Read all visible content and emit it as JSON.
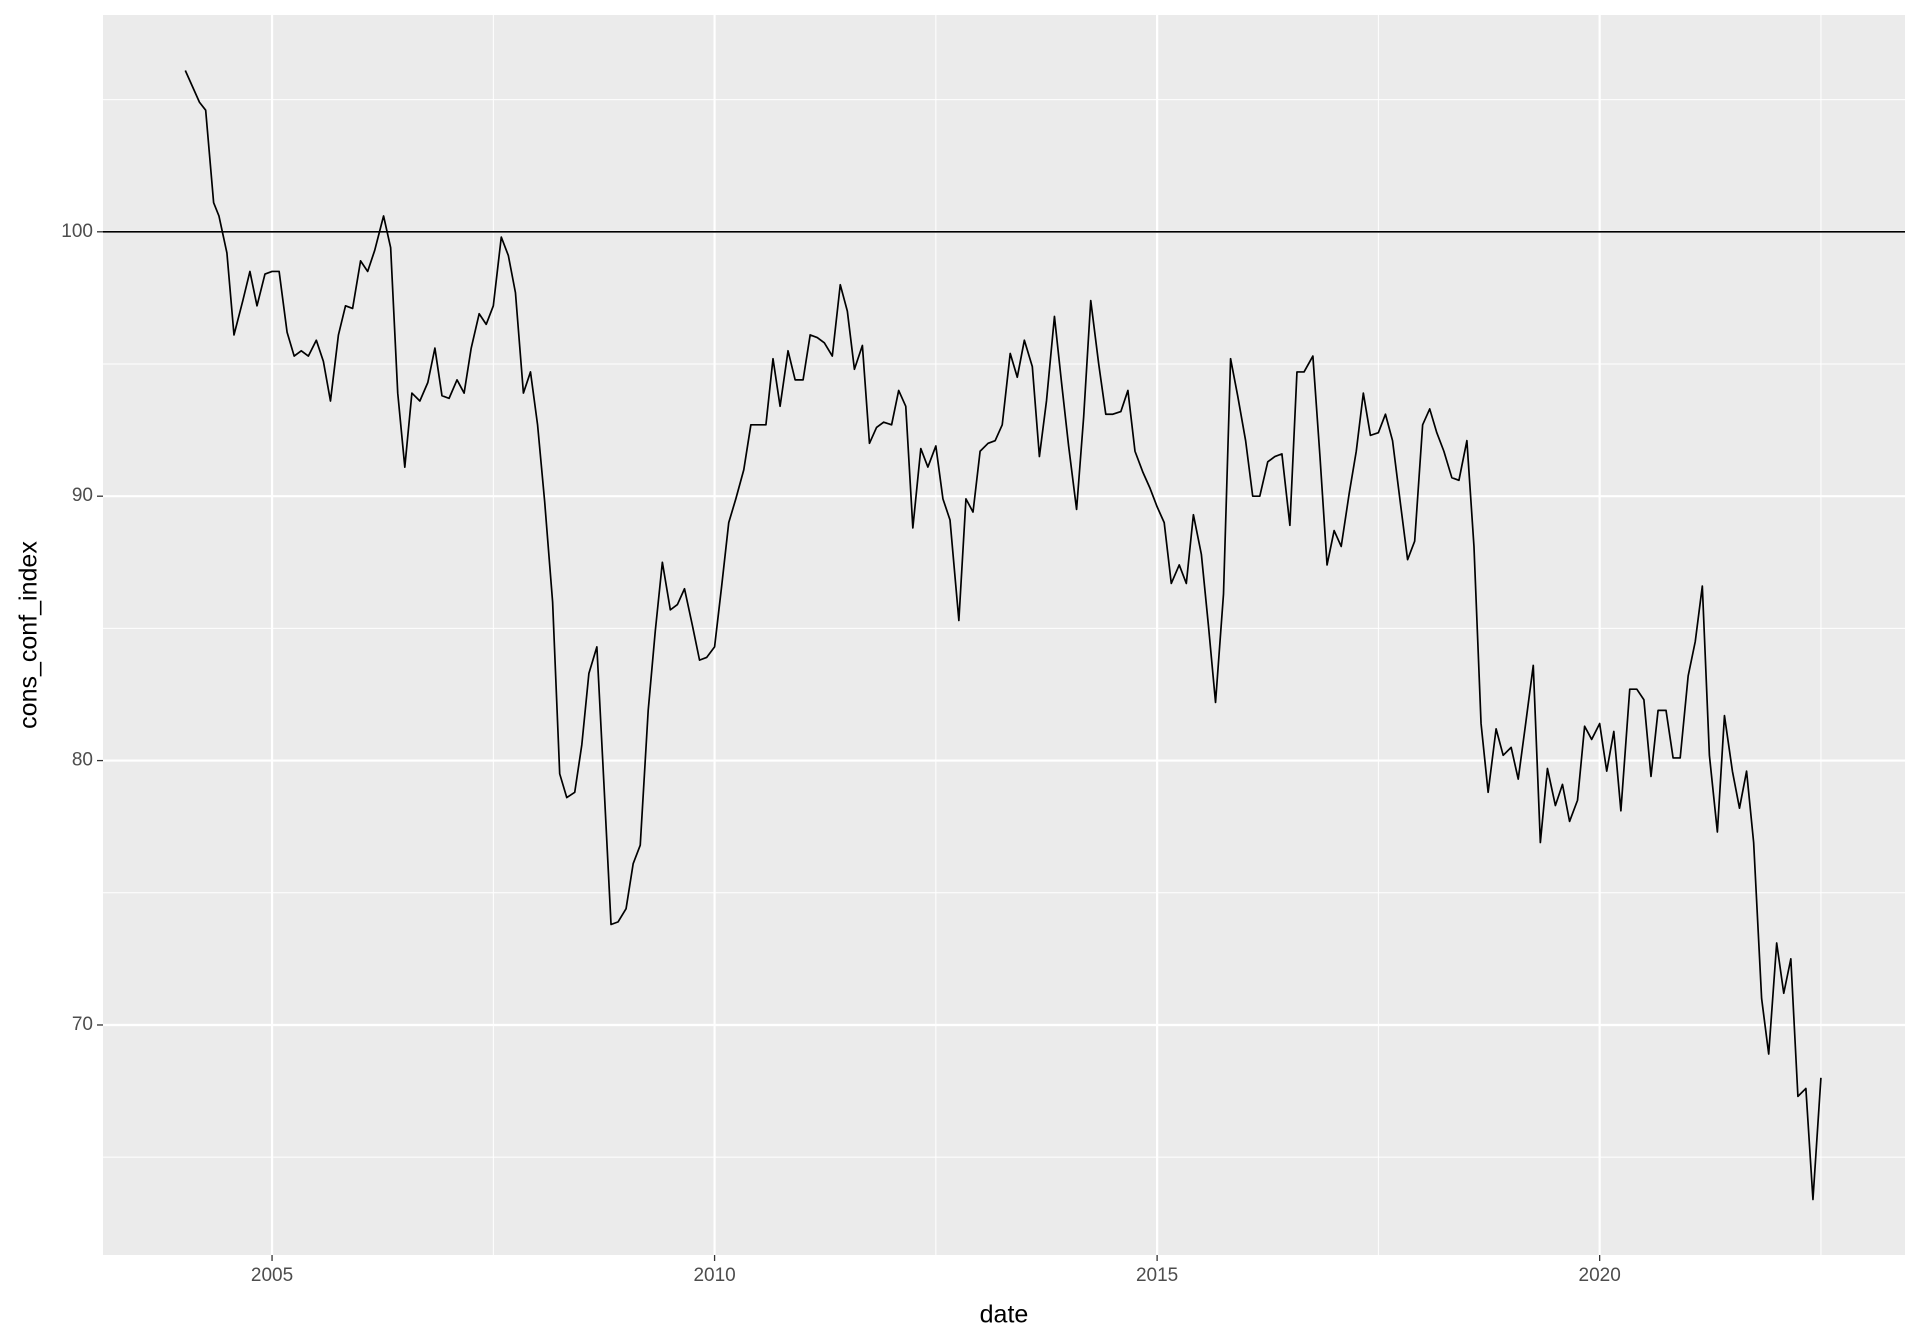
{
  "chart_data": {
    "type": "line",
    "x_label": "date",
    "y_label": "cons_conf_index",
    "xlim": [
      2003.09,
      2023.45
    ],
    "ylim": [
      61.3,
      108.2
    ],
    "xticks": [
      2005,
      2010,
      2015,
      2020
    ],
    "yticks": [
      70,
      80,
      90,
      100
    ],
    "grid": true,
    "hline": 100,
    "x": [
      2004.02,
      2004.1,
      2004.18,
      2004.25,
      2004.34,
      2004.4,
      2004.49,
      2004.57,
      2004.67,
      2004.75,
      2004.83,
      2004.92,
      2005.0,
      2005.08,
      2005.17,
      2005.25,
      2005.33,
      2005.41,
      2005.5,
      2005.58,
      2005.66,
      2005.75,
      2005.83,
      2005.91,
      2006.0,
      2006.08,
      2006.16,
      2006.26,
      2006.34,
      2006.42,
      2006.5,
      2006.58,
      2006.67,
      2006.76,
      2006.84,
      2006.92,
      2007.0,
      2007.09,
      2007.17,
      2007.25,
      2007.34,
      2007.42,
      2007.5,
      2007.59,
      2007.67,
      2007.75,
      2007.84,
      2007.92,
      2008.0,
      2008.08,
      2008.17,
      2008.25,
      2008.33,
      2008.42,
      2008.5,
      2008.58,
      2008.67,
      2008.75,
      2008.83,
      2008.91,
      2009.0,
      2009.08,
      2009.16,
      2009.25,
      2009.33,
      2009.41,
      2009.5,
      2009.58,
      2009.66,
      2009.75,
      2009.83,
      2009.91,
      2010.0,
      2010.08,
      2010.16,
      2010.24,
      2010.33,
      2010.41,
      2010.5,
      2010.58,
      2010.66,
      2010.74,
      2010.83,
      2010.91,
      2011.0,
      2011.08,
      2011.16,
      2011.24,
      2011.33,
      2011.42,
      2011.5,
      2011.58,
      2011.67,
      2011.75,
      2011.83,
      2011.91,
      2012.0,
      2012.08,
      2012.16,
      2012.24,
      2012.33,
      2012.41,
      2012.5,
      2012.58,
      2012.66,
      2012.76,
      2012.84,
      2012.92,
      2013.0,
      2013.09,
      2013.17,
      2013.25,
      2013.34,
      2013.42,
      2013.5,
      2013.59,
      2013.67,
      2013.75,
      2013.84,
      2013.92,
      2014.0,
      2014.09,
      2014.17,
      2014.25,
      2014.34,
      2014.42,
      2014.5,
      2014.59,
      2014.67,
      2014.75,
      2014.84,
      2014.92,
      2015.0,
      2015.08,
      2015.16,
      2015.25,
      2015.33,
      2015.41,
      2015.5,
      2015.58,
      2015.66,
      2015.75,
      2015.83,
      2015.91,
      2016.0,
      2016.08,
      2016.16,
      2016.25,
      2016.33,
      2016.41,
      2016.5,
      2016.58,
      2016.66,
      2016.76,
      2016.84,
      2016.92,
      2017.0,
      2017.08,
      2017.17,
      2017.25,
      2017.33,
      2017.41,
      2017.5,
      2017.58,
      2017.66,
      2017.75,
      2017.83,
      2017.91,
      2018.0,
      2018.08,
      2018.16,
      2018.24,
      2018.33,
      2018.41,
      2018.5,
      2018.58,
      2018.66,
      2018.74,
      2018.83,
      2018.91,
      2019.0,
      2019.08,
      2019.16,
      2019.25,
      2019.33,
      2019.41,
      2019.5,
      2019.58,
      2019.66,
      2019.75,
      2019.83,
      2019.91,
      2020.0,
      2020.08,
      2020.16,
      2020.24,
      2020.34,
      2020.42,
      2020.5,
      2020.58,
      2020.66,
      2020.75,
      2020.83,
      2020.91,
      2021.0,
      2021.08,
      2021.16,
      2021.24,
      2021.33,
      2021.41,
      2021.5,
      2021.58,
      2021.66,
      2021.74,
      2021.83,
      2021.91,
      2022.0,
      2022.08,
      2022.16,
      2022.24,
      2022.33,
      2022.41,
      2022.5
    ],
    "series": [
      {
        "color": "#000000",
        "values": [
          106.1,
          105.5,
          104.9,
          104.6,
          101.1,
          100.6,
          99.2,
          96.1,
          97.4,
          98.5,
          97.2,
          98.4,
          98.5,
          98.5,
          96.2,
          95.3,
          95.5,
          95.3,
          95.9,
          95.1,
          93.6,
          96.1,
          97.2,
          97.1,
          98.9,
          98.5,
          99.3,
          100.6,
          99.4,
          93.9,
          91.1,
          93.9,
          93.6,
          94.3,
          95.6,
          93.8,
          93.7,
          94.4,
          93.9,
          95.6,
          96.9,
          96.5,
          97.2,
          99.8,
          99.1,
          97.7,
          93.9,
          94.7,
          92.7,
          89.8,
          86.0,
          79.5,
          78.6,
          78.8,
          80.6,
          83.3,
          84.3,
          79.1,
          73.8,
          73.9,
          74.4,
          76.1,
          76.8,
          81.9,
          84.9,
          87.5,
          85.7,
          85.9,
          86.5,
          85.1,
          83.8,
          83.9,
          84.3,
          86.6,
          89.0,
          89.9,
          91.0,
          92.7,
          92.7,
          92.7,
          95.2,
          93.4,
          95.5,
          94.4,
          94.4,
          96.1,
          96.0,
          95.8,
          95.3,
          98.0,
          97.0,
          94.8,
          95.7,
          92.0,
          92.6,
          92.8,
          92.7,
          94.0,
          93.4,
          88.8,
          91.8,
          91.1,
          91.9,
          89.9,
          89.1,
          85.3,
          89.9,
          89.4,
          91.7,
          92.0,
          92.1,
          92.7,
          95.4,
          94.5,
          95.9,
          94.9,
          91.5,
          93.6,
          96.8,
          94.3,
          91.9,
          89.5,
          93.0,
          97.4,
          95.0,
          93.1,
          93.1,
          93.2,
          94.0,
          91.7,
          90.9,
          90.3,
          89.6,
          89.0,
          86.7,
          87.4,
          86.7,
          89.3,
          87.8,
          85.1,
          82.2,
          86.3,
          95.2,
          93.8,
          92.1,
          90.0,
          90.0,
          91.3,
          91.5,
          91.6,
          88.9,
          94.7,
          94.7,
          95.3,
          91.5,
          87.4,
          88.7,
          88.1,
          90.1,
          91.7,
          93.9,
          92.3,
          92.4,
          93.1,
          92.1,
          89.7,
          87.6,
          88.3,
          92.7,
          93.3,
          92.4,
          91.7,
          90.7,
          90.6,
          92.1,
          88.1,
          81.4,
          78.8,
          81.2,
          80.2,
          80.5,
          79.3,
          81.3,
          83.6,
          76.9,
          79.7,
          78.3,
          79.1,
          77.7,
          78.5,
          81.3,
          80.8,
          81.4,
          79.6,
          81.1,
          78.1,
          82.7,
          82.7,
          82.3,
          79.4,
          81.9,
          81.9,
          80.1,
          80.1,
          83.2,
          84.5,
          86.6,
          80.2,
          77.3,
          81.7,
          79.6,
          78.2,
          79.6,
          76.9,
          71.0,
          68.9,
          73.1,
          71.2,
          72.5,
          67.3,
          67.6,
          63.4,
          68.0
        ]
      }
    ]
  }
}
